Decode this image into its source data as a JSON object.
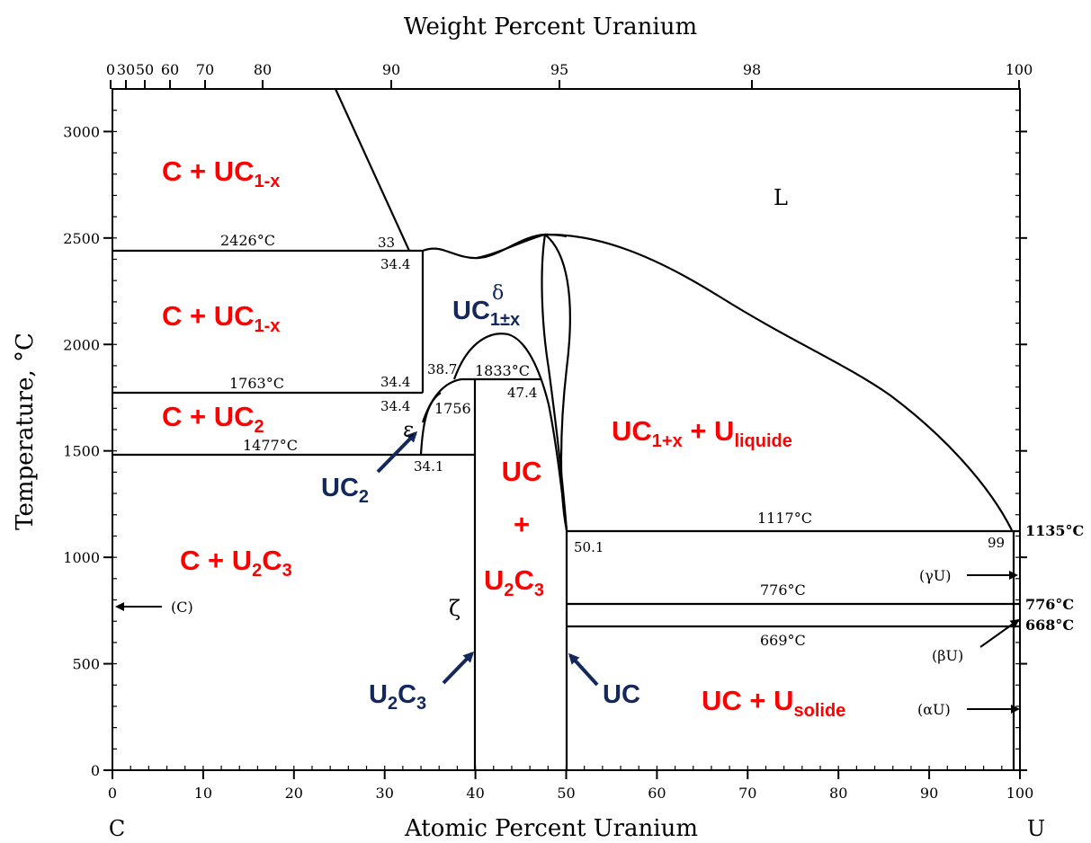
{
  "figure": {
    "top_axis_title": "Weight Percent Uranium",
    "bottom_axis_title": "Atomic Percent Uranium",
    "left_axis_title": "Temperature, °C",
    "left_end_label": "C",
    "right_end_label": "U",
    "top_ticks": [
      "0",
      "30",
      "50",
      "60",
      "70",
      "80",
      "90",
      "95",
      "98",
      "100"
    ],
    "bottom_ticks": [
      "0",
      "10",
      "20",
      "30",
      "40",
      "50",
      "60",
      "70",
      "80",
      "90",
      "100"
    ],
    "left_ticks": [
      "0",
      "500",
      "1000",
      "1500",
      "2000",
      "2500",
      "3000"
    ]
  },
  "phase_labels": {
    "c_uc1x_top": {
      "main": "C + UC",
      "sub": "1-x"
    },
    "c_uc1x_mid": {
      "main": "C + UC",
      "sub": "1-x"
    },
    "c_uc2": {
      "main": "C + UC",
      "sub": "2"
    },
    "c_u2c3": {
      "main": "C + U",
      "sub1": "2",
      "mid": "C",
      "sub2": "3"
    },
    "uc_plus": "UC",
    "plus_sign": "+",
    "u2c3_red": {
      "main": "U",
      "sub1": "2",
      "mid": "C",
      "sub2": "3"
    },
    "uc1x_uliq": {
      "main": "UC",
      "sub1": "1+x",
      "mid": " + U",
      "sub2": "liquide"
    },
    "uc_usol": {
      "main": "UC + U",
      "sub": "solide"
    },
    "uc_delta": {
      "main": "UC",
      "sup": "δ",
      "sub": "1±x"
    },
    "uc2_blue": {
      "main": "UC",
      "sub": "2"
    },
    "u2c3_blue": {
      "main": "U",
      "sub1": "2",
      "mid": "C",
      "sub2": "3"
    },
    "uc_blue": "UC",
    "liquid": "L",
    "epsilon": "ε",
    "zeta": "ζ"
  },
  "temperature_labels": {
    "t2426": "2426°C",
    "t1763": "1763°C",
    "t1477": "1477°C",
    "t1833": "1833°C",
    "t1756": "1756",
    "t1117": "1117°C",
    "t776": "776°C",
    "t669": "669°C"
  },
  "right_temperatures": {
    "t1135": "1135°C",
    "t776": "776°C",
    "t668": "668°C"
  },
  "composition_labels": {
    "c33": "33",
    "c344a": "34.4",
    "c344b": "34.4",
    "c344c": "34.4",
    "c387": "38.7",
    "c474": "47.4",
    "c341": "34.1",
    "c501": "50.1",
    "c99": "99"
  },
  "allotrope_labels": {
    "gamma_u": "(γU)",
    "beta_u": "(βU)",
    "alpha_u": "(αU)",
    "carbon": "(C)"
  },
  "colors": {
    "phase_red": "#ff0000",
    "phase_blue": "#14285a",
    "line": "#000000"
  }
}
